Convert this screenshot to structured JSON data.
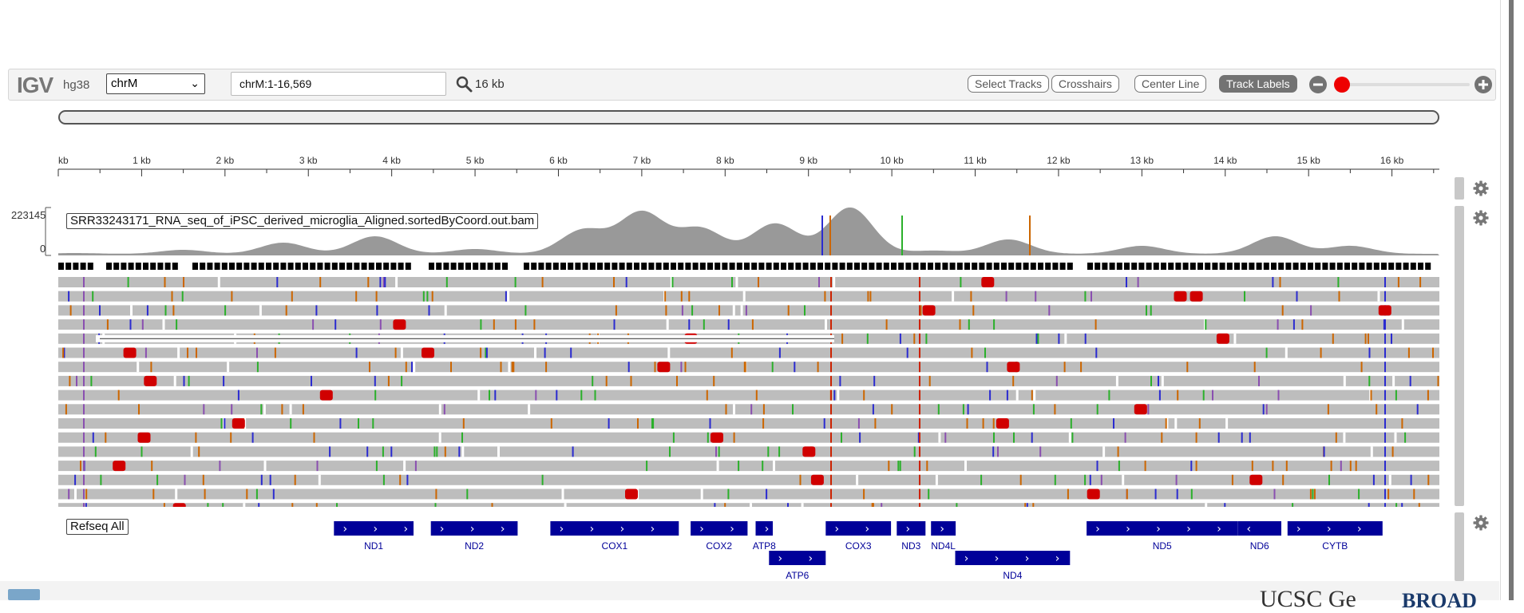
{
  "app": {
    "logo": "IGV",
    "genome": "hg38"
  },
  "toolbar": {
    "chromosome": "chrM",
    "locus": "chrM:1-16,569",
    "window_width": "16 kb",
    "buttons": [
      {
        "label": "Select Tracks",
        "active": false
      },
      {
        "label": "Crosshairs",
        "active": false
      },
      {
        "label": "Center Line",
        "active": false
      },
      {
        "label": "Track Labels",
        "active": true
      }
    ],
    "zoom_level": 0.0
  },
  "ruler": {
    "ticks": [
      "kb",
      "1 kb",
      "2 kb",
      "3 kb",
      "4 kb",
      "5 kb",
      "6 kb",
      "7 kb",
      "8 kb",
      "9 kb",
      "10 kb",
      "11 kb",
      "12 kb",
      "13 kb",
      "14 kb",
      "15 kb",
      "16 kb"
    ]
  },
  "alignment_track": {
    "name": "SRR33243171_RNA_seq_of_iPSC_derived_microglia_Aligned.sortedByCoord.out.bam",
    "coverage_max": "223145",
    "coverage_min": "0",
    "colors": {
      "read": "#bdbdbd",
      "coverage": "#999999",
      "mismatch_red": "#d00000",
      "insertion": "#8a4fb0",
      "junction": "#000000"
    }
  },
  "refseq_track": {
    "name": "Refseq All",
    "color": "#000099",
    "genes": [
      {
        "name": "ND1",
        "start": 3307,
        "end": 4262,
        "strand": "+",
        "row": 0
      },
      {
        "name": "ND2",
        "start": 4470,
        "end": 5511,
        "strand": "+",
        "row": 0
      },
      {
        "name": "COX1",
        "start": 5904,
        "end": 7445,
        "strand": "+",
        "row": 0
      },
      {
        "name": "COX2",
        "start": 7586,
        "end": 8269,
        "strand": "+",
        "row": 0
      },
      {
        "name": "ATP8",
        "start": 8366,
        "end": 8572,
        "strand": "+",
        "row": 0
      },
      {
        "name": "ATP6",
        "start": 8527,
        "end": 9207,
        "strand": "+",
        "row": 1
      },
      {
        "name": "COX3",
        "start": 9207,
        "end": 9990,
        "strand": "+",
        "row": 0
      },
      {
        "name": "ND3",
        "start": 10059,
        "end": 10404,
        "strand": "+",
        "row": 0
      },
      {
        "name": "ND4L",
        "start": 10470,
        "end": 10766,
        "strand": "+",
        "row": 0
      },
      {
        "name": "ND4",
        "start": 10760,
        "end": 12137,
        "strand": "+",
        "row": 1
      },
      {
        "name": "ND5",
        "start": 12337,
        "end": 14148,
        "strand": "+",
        "row": 0
      },
      {
        "name": "ND6",
        "start": 14149,
        "end": 14673,
        "strand": "-",
        "row": 0
      },
      {
        "name": "CYTB",
        "start": 14747,
        "end": 15887,
        "strand": "+",
        "row": 0
      }
    ]
  },
  "footer": {
    "ucsc": "UCSC Ge",
    "broad": "BROAD"
  }
}
